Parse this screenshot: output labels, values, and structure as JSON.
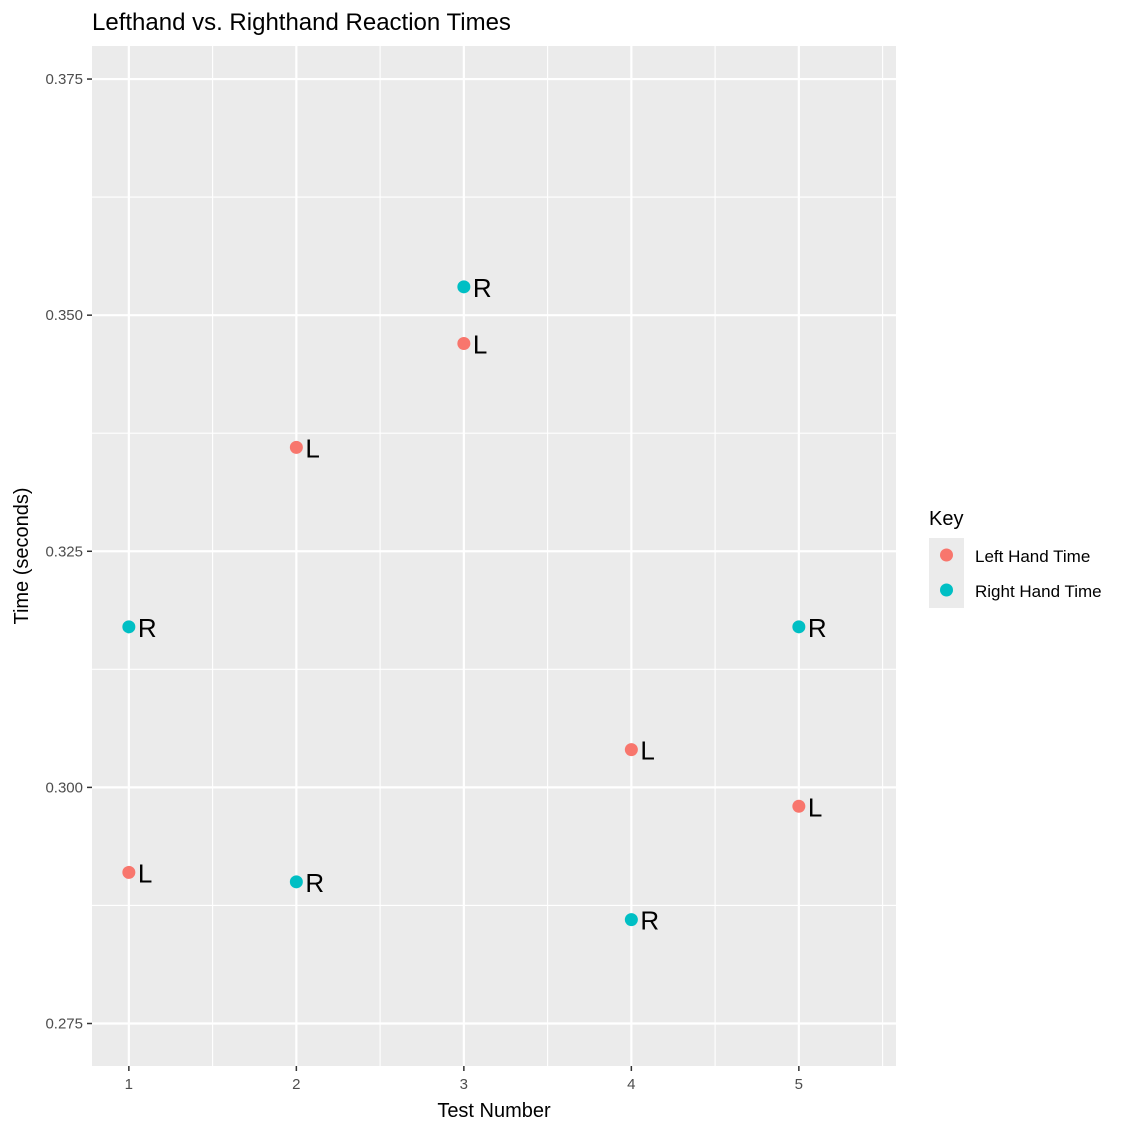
{
  "chart_data": {
    "type": "scatter",
    "title": "Lefthand vs. Righthand Reaction Times",
    "xlabel": "Test Number",
    "ylabel": "Time (seconds)",
    "xlim": [
      0.78,
      5.58
    ],
    "ylim": [
      0.2705,
      0.3785
    ],
    "x_ticks": [
      1,
      2,
      3,
      4,
      5
    ],
    "y_ticks": [
      0.275,
      0.3,
      0.325,
      0.35,
      0.375
    ],
    "x_tick_labels": [
      "1",
      "2",
      "3",
      "4",
      "5"
    ],
    "y_tick_labels": [
      "0.275",
      "0.300",
      "0.325",
      "0.350",
      "0.375"
    ],
    "grid": true,
    "legend": {
      "title": "Key",
      "position": "right"
    },
    "series": [
      {
        "name": "Left Hand Time",
        "color": "#F8766D",
        "point_label": "L",
        "x": [
          1,
          2,
          3,
          4,
          5
        ],
        "y": [
          0.291,
          0.336,
          0.347,
          0.304,
          0.298
        ]
      },
      {
        "name": "Right Hand Time",
        "color": "#00BFC4",
        "point_label": "R",
        "x": [
          1,
          2,
          3,
          4,
          5
        ],
        "y": [
          0.317,
          0.29,
          0.353,
          0.286,
          0.317
        ]
      }
    ]
  }
}
